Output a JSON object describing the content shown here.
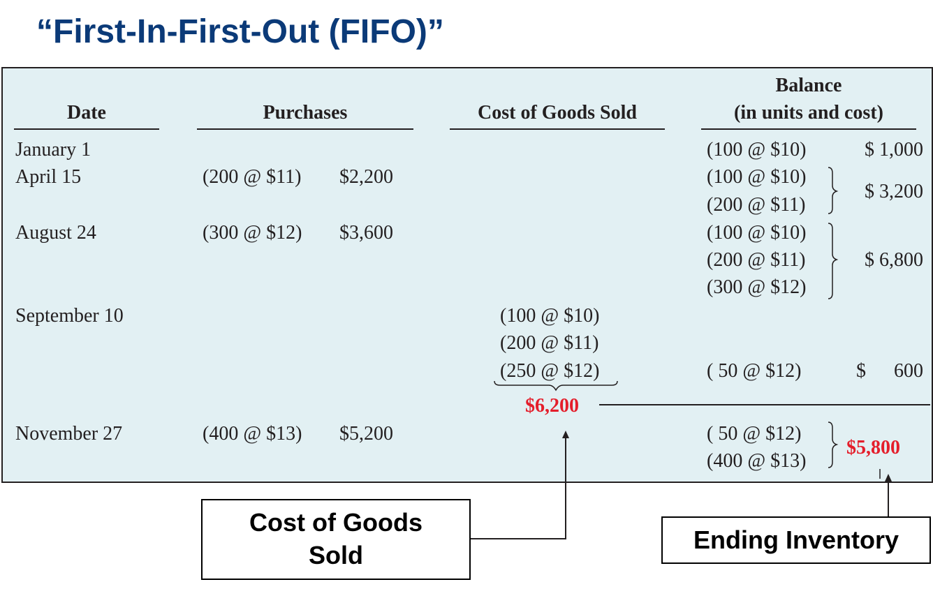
{
  "title": "“First-In-First-Out (FIFO)”",
  "headers": {
    "date": "Date",
    "purchases": "Purchases",
    "cogs": "Cost of Goods Sold",
    "balance_line1": "Balance",
    "balance_line2": "(in units and cost)"
  },
  "rows": {
    "jan1": {
      "date": "January 1",
      "balance_units": [
        "(100 @ $10)"
      ],
      "balance_cost": "$ 1,000"
    },
    "apr15": {
      "date": "April 15",
      "purchase_units": "(200 @ $11)",
      "purchase_cost": "$2,200",
      "balance_units": [
        "(100 @ $10)",
        "(200 @ $11)"
      ],
      "balance_cost": "$ 3,200"
    },
    "aug24": {
      "date": "August 24",
      "purchase_units": "(300 @ $12)",
      "purchase_cost": "$3,600",
      "balance_units": [
        "(100 @ $10)",
        "(200 @ $11)",
        "(300 @ $12)"
      ],
      "balance_cost": "$ 6,800"
    },
    "sep10": {
      "date": "September 10",
      "cogs_units": [
        "(100 @ $10)",
        "(200 @ $11)",
        "(250 @ $12)"
      ],
      "cogs_total": "$6,200",
      "balance_units": [
        "( 50 @ $12)"
      ],
      "balance_cost_symbol": "$",
      "balance_cost_amount": "600"
    },
    "nov27": {
      "date": "November 27",
      "purchase_units": "(400 @ $13)",
      "purchase_cost": "$5,200",
      "balance_units": [
        "( 50 @ $12)",
        "(400 @ $13)"
      ],
      "balance_cost": "$5,800"
    }
  },
  "callouts": {
    "cogs_line1": "Cost of Goods",
    "cogs_line2": "Sold",
    "ending_inventory": "Ending Inventory"
  },
  "colors": {
    "title": "#0b3a78",
    "panel": "#e2f0f3",
    "highlight": "#e41e2b"
  }
}
